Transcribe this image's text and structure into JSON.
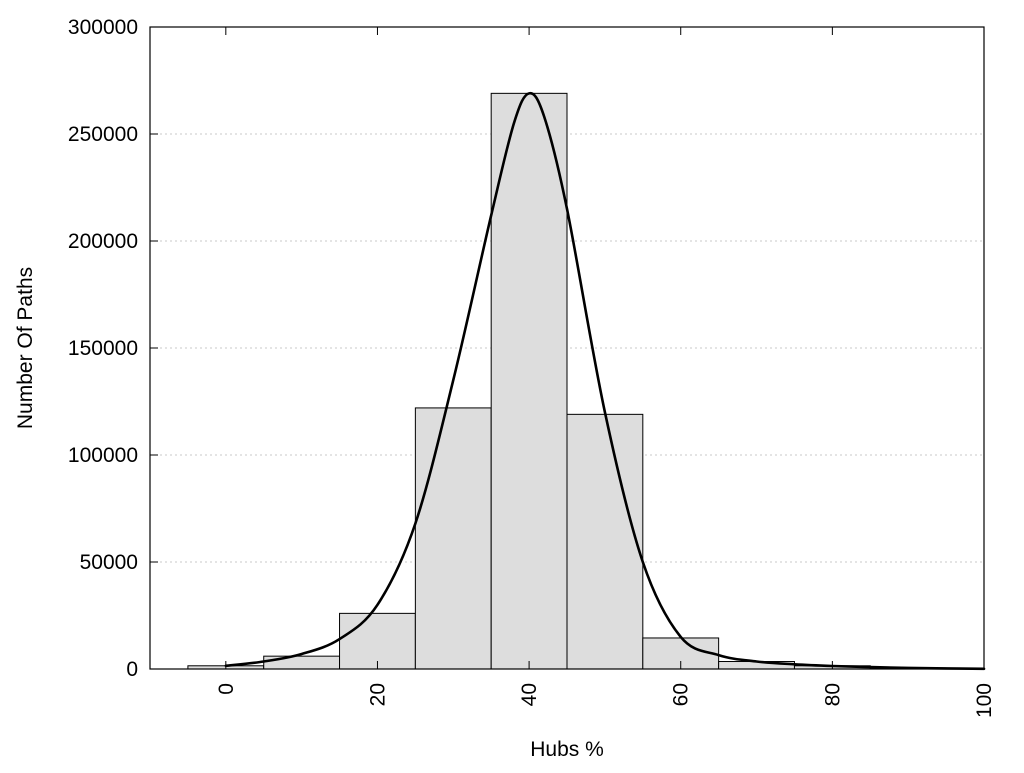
{
  "chart_data": {
    "type": "bar",
    "xlabel": "Hubs %",
    "ylabel": "Number Of Paths",
    "xlim": [
      -10,
      100
    ],
    "ylim": [
      0,
      300000
    ],
    "x_ticks": [
      0,
      20,
      40,
      60,
      80,
      100
    ],
    "y_ticks": [
      0,
      50000,
      100000,
      150000,
      200000,
      250000,
      300000
    ],
    "grid": "horizontal dotted",
    "bin_width": 10,
    "bins": [
      {
        "center": 0,
        "value": 1500
      },
      {
        "center": 10,
        "value": 6000
      },
      {
        "center": 20,
        "value": 26000
      },
      {
        "center": 30,
        "value": 122000
      },
      {
        "center": 40,
        "value": 269000
      },
      {
        "center": 50,
        "value": 119000
      },
      {
        "center": 60,
        "value": 14500
      },
      {
        "center": 70,
        "value": 3500
      },
      {
        "center": 80,
        "value": 1500
      },
      {
        "center": 90,
        "value": 500
      }
    ],
    "fit_curve": {
      "x": [
        0,
        5,
        10,
        15,
        20,
        25,
        30,
        35,
        38,
        40,
        42,
        45,
        50,
        55,
        60,
        65,
        70,
        75,
        80,
        85,
        90,
        95,
        100
      ],
      "y": [
        1500,
        3500,
        7000,
        14000,
        30000,
        68000,
        135000,
        212000,
        255000,
        269000,
        258000,
        215000,
        120000,
        50000,
        15000,
        6500,
        3500,
        2200,
        1400,
        900,
        500,
        250,
        100
      ]
    },
    "colors": {
      "bar_fill": "#dddddd",
      "bar_stroke": "#000000",
      "curve": "#000000",
      "grid": "#c8c8c8"
    }
  }
}
